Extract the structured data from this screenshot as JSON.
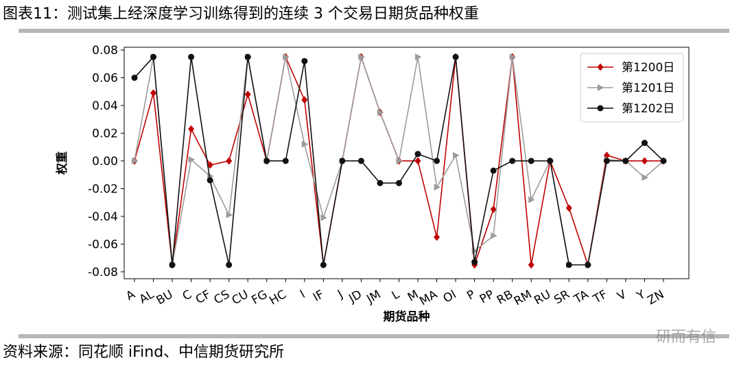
{
  "figure": {
    "title": "图表11：测试集上经深度学习训练得到的连续 3 个交易日期货品种权重",
    "source": "资料来源：同花顺 iFind、中信期货研究所",
    "watermark": "研而有信"
  },
  "chart_data": {
    "type": "line",
    "title": "",
    "xlabel": "期货品种",
    "ylabel": "权重",
    "ylim": [
      -0.085,
      0.082
    ],
    "yticks": [
      -0.08,
      -0.06,
      -0.04,
      -0.02,
      0.0,
      0.02,
      0.04,
      0.06,
      0.08
    ],
    "ytick_labels": [
      "-0.08",
      "-0.06",
      "-0.04",
      "-0.02",
      "0.00",
      "0.02",
      "0.04",
      "0.06",
      "0.08"
    ],
    "grid": false,
    "legend_position": "top-right",
    "categories": [
      "A",
      "AL",
      "BU",
      "C",
      "CF",
      "CS",
      "CU",
      "FG",
      "HC",
      "I",
      "IF",
      "J",
      "JD",
      "JM",
      "L",
      "M",
      "MA",
      "OI",
      "P",
      "PP",
      "RB",
      "RM",
      "RU",
      "SR",
      "TA",
      "TF",
      "V",
      "Y",
      "ZN"
    ],
    "series": [
      {
        "name": "第1200日",
        "color": "#c00000",
        "marker": "diamond",
        "values": [
          0.0,
          0.049,
          -0.075,
          0.023,
          -0.003,
          0.0,
          0.048,
          0.0,
          0.075,
          0.044,
          -0.075,
          0.0,
          0.075,
          0.035,
          0.0,
          0.0,
          -0.055,
          0.075,
          -0.075,
          -0.035,
          0.075,
          -0.075,
          0.0,
          -0.034,
          -0.075,
          0.004,
          0.0,
          0.0,
          0.0
        ]
      },
      {
        "name": "第1201日",
        "color": "#9b9b9b",
        "marker": "triangle-right",
        "values": [
          0.0,
          0.075,
          -0.075,
          0.001,
          -0.011,
          -0.039,
          0.075,
          0.0,
          0.075,
          0.012,
          -0.041,
          0.0,
          0.075,
          0.035,
          0.0,
          0.075,
          -0.019,
          0.004,
          -0.065,
          -0.054,
          0.075,
          -0.028,
          0.0,
          -0.075,
          -0.075,
          0.001,
          0.0,
          -0.012,
          0.0
        ]
      },
      {
        "name": "第1202日",
        "color": "#111111",
        "marker": "circle",
        "values": [
          0.06,
          0.075,
          -0.075,
          0.075,
          -0.014,
          -0.075,
          0.075,
          0.0,
          0.0,
          0.072,
          -0.075,
          0.0,
          0.0,
          -0.016,
          -0.016,
          0.005,
          0.0,
          0.075,
          -0.073,
          -0.007,
          0.0,
          0.0,
          0.0,
          -0.075,
          -0.075,
          0.0,
          0.0,
          0.013,
          0.0
        ]
      }
    ]
  }
}
